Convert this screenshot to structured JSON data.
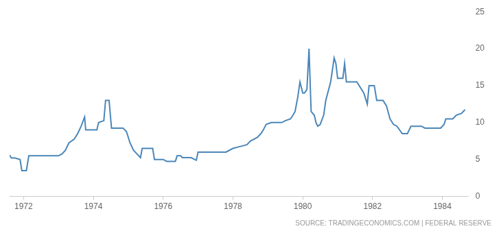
{
  "chart_data": {
    "type": "line",
    "source": "SOURCE: TRADINGECONOMICS.COM | FEDERAL RESERVE",
    "x": [
      1971.6,
      1971.65,
      1971.75,
      1971.9,
      1971.95,
      1972.08,
      1972.15,
      1973.0,
      1973.1,
      1973.2,
      1973.3,
      1973.45,
      1973.55,
      1973.65,
      1973.75,
      1973.78,
      1974.1,
      1974.15,
      1974.3,
      1974.35,
      1974.45,
      1974.52,
      1974.85,
      1974.95,
      1975.05,
      1975.15,
      1975.25,
      1975.35,
      1975.4,
      1975.7,
      1975.75,
      1976.0,
      1976.1,
      1976.35,
      1976.4,
      1976.5,
      1976.55,
      1976.8,
      1976.95,
      1977.0,
      1977.8,
      1977.9,
      1978.0,
      1978.2,
      1978.4,
      1978.5,
      1978.7,
      1978.8,
      1978.87,
      1978.95,
      1979.1,
      1979.4,
      1979.5,
      1979.65,
      1979.72,
      1979.78,
      1979.86,
      1979.92,
      1980.0,
      1980.05,
      1980.12,
      1980.18,
      1980.24,
      1980.33,
      1980.38,
      1980.43,
      1980.5,
      1980.6,
      1980.66,
      1980.8,
      1980.9,
      1980.95,
      1981.0,
      1981.15,
      1981.2,
      1981.25,
      1981.55,
      1981.75,
      1981.85,
      1981.9,
      1982.05,
      1982.12,
      1982.3,
      1982.4,
      1982.5,
      1982.6,
      1982.7,
      1982.85,
      1983.0,
      1983.1,
      1983.4,
      1983.5,
      1983.95,
      1984.05,
      1984.1,
      1984.3,
      1984.4,
      1984.55,
      1984.65
    ],
    "values": [
      5.6,
      5.2,
      5.2,
      5.0,
      3.5,
      3.5,
      5.5,
      5.5,
      5.75,
      6.25,
      7.25,
      7.75,
      8.5,
      9.5,
      10.75,
      9.0,
      9.0,
      10.0,
      10.25,
      13.0,
      13.0,
      9.25,
      9.25,
      8.75,
      7.25,
      6.25,
      5.75,
      5.25,
      6.5,
      6.5,
      5.0,
      5.0,
      4.75,
      4.75,
      5.5,
      5.5,
      5.25,
      5.25,
      4.9,
      6.0,
      6.0,
      6.25,
      6.5,
      6.75,
      7.0,
      7.5,
      8.0,
      8.5,
      9.0,
      9.75,
      10.0,
      10.0,
      10.25,
      10.5,
      11.0,
      11.5,
      13.5,
      15.5,
      14.0,
      14.0,
      14.5,
      20.0,
      11.5,
      11.0,
      10.0,
      9.5,
      9.75,
      11.0,
      13.0,
      15.5,
      18.75,
      18.0,
      16.0,
      16.0,
      18.0,
      15.5,
      15.5,
      14.0,
      12.5,
      15.0,
      15.0,
      13.0,
      13.0,
      12.25,
      10.5,
      9.75,
      9.5,
      8.5,
      8.5,
      9.5,
      9.5,
      9.25,
      9.25,
      9.75,
      10.5,
      10.5,
      11.0,
      11.25,
      11.75
    ],
    "color": "#4a86b8",
    "xlim": [
      1971.6,
      1984.75
    ],
    "xticks": [
      1972,
      1974,
      1976,
      1978,
      1980,
      1982,
      1984
    ],
    "ylim": [
      0,
      25
    ],
    "yticks": [
      0,
      5,
      10,
      15,
      20,
      25
    ],
    "grid": false,
    "tick_labels": true
  }
}
